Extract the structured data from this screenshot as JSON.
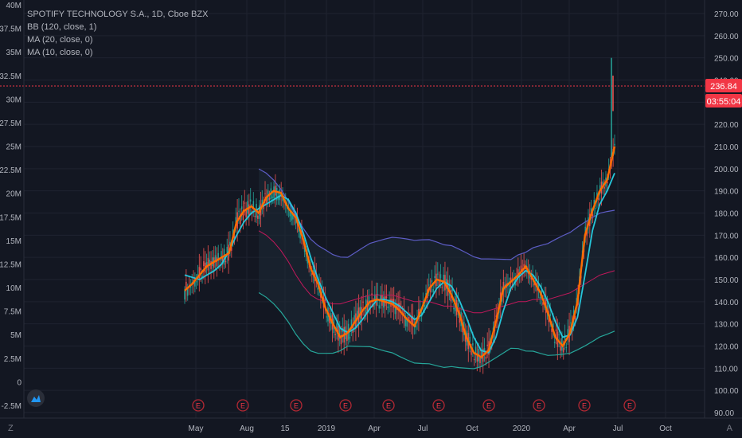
{
  "legend": {
    "title": "SPOTIFY TECHNOLOGY S.A., 1D, Cboe BZX",
    "bb": "BB (120, close, 1)",
    "ma20": "MA (20, close, 0)",
    "ma10": "MA (10, close, 0)"
  },
  "price_badge": "236.84",
  "timer_badge": "03:55:04",
  "corner_left": "Z",
  "corner_right": "A",
  "event_marker": "E",
  "colors": {
    "background": "#131722",
    "grid": "#1f2330",
    "axis_text": "#b2b5be",
    "price_line": "#f23645",
    "ma10": "#ff6d00",
    "ma20": "#26c6da",
    "bb_basis": "#c2185b",
    "bb_upper": "#5d5dc6",
    "bb_lower": "#26a69a",
    "candle_up": "#26a69a",
    "candle_down": "#ef5350"
  },
  "chart_data": {
    "type": "line",
    "title": "SPOTIFY TECHNOLOGY S.A., 1D, Cboe BZX",
    "x_ticks": [
      "May",
      "Aug",
      "15",
      "2019",
      "Apr",
      "Jul",
      "Oct",
      "2020",
      "Apr",
      "Jul",
      "Oct"
    ],
    "right_axis": {
      "ticks": [
        "270.00",
        "260.00",
        "250.00",
        "240.00",
        "230.00",
        "220.00",
        "210.00",
        "200.00",
        "190.00",
        "180.00",
        "170.00",
        "160.00",
        "150.00",
        "140.00",
        "130.00",
        "120.00",
        "110.00",
        "100.00",
        "90.00"
      ],
      "ylim": [
        90,
        270
      ]
    },
    "left_axis": {
      "ticks": [
        "40M",
        "37.5M",
        "35M",
        "32.5M",
        "30M",
        "27.5M",
        "25M",
        "22.5M",
        "20M",
        "17.5M",
        "15M",
        "12.5M",
        "10M",
        "7.5M",
        "5M",
        "2.5M",
        "0",
        "-2.5M"
      ],
      "ylim": [
        -2.5,
        40
      ]
    },
    "event_markers": [
      "E",
      "E",
      "E",
      "E",
      "E",
      "E",
      "E",
      "E",
      "E",
      "E"
    ],
    "last_price": 236.84,
    "series": [
      {
        "name": "MA (10, close, 0)",
        "values": [
          145,
          148,
          152,
          156,
          158,
          160,
          162,
          176,
          181,
          183,
          180,
          187,
          190,
          189,
          182,
          178,
          168,
          155,
          148,
          137,
          130,
          124,
          126,
          131,
          136,
          140,
          141,
          140,
          139,
          136,
          132,
          129,
          137,
          146,
          150,
          149,
          143,
          135,
          124,
          117,
          115,
          118,
          131,
          146,
          149,
          152,
          156,
          150,
          144,
          135,
          124,
          120,
          126,
          140,
          170,
          181,
          190,
          195,
          210
        ]
      },
      {
        "name": "MA (20, close, 0)",
        "values": [
          152,
          151,
          150,
          152,
          154,
          157,
          163,
          170,
          176,
          180,
          182,
          184,
          186,
          188,
          186,
          180,
          171,
          160,
          150,
          142,
          135,
          128,
          126,
          128,
          132,
          137,
          141,
          141,
          140,
          138,
          135,
          132,
          134,
          140,
          146,
          149,
          147,
          141,
          133,
          124,
          118,
          117,
          124,
          136,
          146,
          151,
          154,
          152,
          147,
          140,
          131,
          124,
          125,
          133,
          152,
          172,
          184,
          190,
          198
        ]
      },
      {
        "name": "BB (120, close, 1)",
        "values": [
          null,
          null,
          null,
          null,
          null,
          null,
          null,
          null,
          null,
          null,
          172,
          170,
          167,
          163,
          158,
          152,
          147,
          143,
          141,
          140,
          139,
          139,
          140,
          141,
          142,
          143,
          143,
          143,
          143,
          142,
          141,
          140,
          140,
          140,
          139,
          138,
          138,
          137,
          136,
          135,
          135,
          136,
          137,
          138,
          139,
          140,
          140,
          141,
          141,
          141,
          142,
          143,
          144,
          146,
          148,
          150,
          152,
          153,
          154
        ]
      }
    ]
  }
}
